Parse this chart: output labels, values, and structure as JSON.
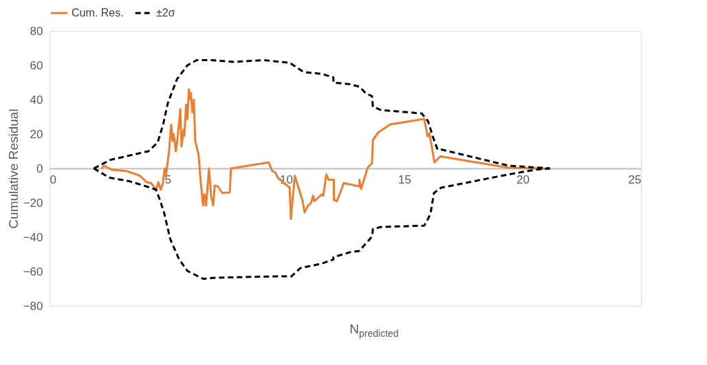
{
  "chart_data": {
    "type": "line",
    "xlabel": "N$_{predicted}$",
    "ylabel": "Cumulative Residual",
    "xlim": [
      0,
      25
    ],
    "xticks": [
      0,
      5,
      10,
      15,
      20,
      25
    ],
    "ylim": [
      -80,
      80
    ],
    "yticks": [
      -80,
      -60,
      -40,
      -20,
      0,
      20,
      40,
      60,
      80
    ],
    "grid": false,
    "legend": "top",
    "marker": "none",
    "series": [
      {
        "name": "Cum. Res.",
        "color": "#ed7d31",
        "line_style": "solid",
        "x": [
          2.2,
          2.3,
          2.64,
          3.27,
          3.82,
          4.1,
          4.29,
          4.51,
          4.6,
          4.7,
          4.79,
          4.87,
          4.92,
          5.06,
          5.14,
          5.2,
          5.25,
          5.34,
          5.42,
          5.53,
          5.58,
          5.67,
          5.7,
          5.77,
          5.83,
          5.89,
          5.93,
          5.97,
          6.04,
          6.1,
          6.16,
          6.3,
          6.38,
          6.49,
          6.55,
          6.62,
          6.74,
          6.83,
          6.92,
          6.98,
          7.12,
          7.3,
          7.62,
          7.67,
          9.27,
          9.41,
          9.54,
          9.65,
          10.15,
          10.2,
          10.37,
          10.7,
          10.78,
          10.92,
          11.06,
          11.14,
          11.2,
          11.52,
          11.57,
          11.7,
          11.8,
          12.02,
          12.02,
          12.15,
          12.44,
          13.1,
          13.1,
          13.17,
          13.45,
          13.63,
          13.67,
          13.9,
          14.4,
          15.84,
          15.98,
          16.06,
          16.27,
          16.52,
          19.4,
          20.95
        ],
        "values": [
          0,
          1.6,
          -0.8,
          -1.6,
          -4.2,
          -8,
          -8.5,
          -12.4,
          -8,
          -12.4,
          -8.6,
          0,
          -4.6,
          11,
          25.5,
          16,
          20,
          10,
          18.6,
          34.5,
          12.8,
          22.5,
          19,
          37,
          28.7,
          46,
          40.3,
          44,
          32.6,
          40,
          16,
          8,
          -6,
          -21.6,
          -15,
          -21.6,
          0,
          -16,
          -21.6,
          -10,
          -10.5,
          -14.3,
          -14,
          0,
          3.5,
          -1.5,
          -2.3,
          -5.4,
          -11.2,
          -29.4,
          -4.3,
          -19,
          -25.6,
          -21.7,
          -20,
          -15.9,
          -19,
          -15,
          -16,
          -3.5,
          -6.6,
          -6.6,
          -18.3,
          -19,
          -8.5,
          -10.5,
          -6.6,
          -12,
          0.4,
          3,
          16.6,
          21,
          25.6,
          28.8,
          18.6,
          20.5,
          3.5,
          7,
          0.4,
          0
        ]
      },
      {
        "name": "±2σ",
        "color": "#000000",
        "line_style": "dashed",
        "x": [
          1.87,
          2.58,
          4.18,
          4.57,
          4.81,
          5.0,
          5.39,
          5.83,
          6.22,
          6.85,
          7.76,
          9.05,
          10.15,
          10.75,
          11.5,
          12.0,
          12.0,
          12.7,
          13.1,
          13.35,
          13.63,
          13.67,
          14.0,
          15.73,
          16.0,
          16.2,
          16.4,
          16.56,
          19.4,
          21.15
        ],
        "values": [
          0,
          5,
          10,
          15,
          26,
          38,
          52,
          60,
          63,
          63,
          62,
          63,
          61.5,
          56,
          55,
          53,
          50,
          49,
          47.5,
          44,
          42,
          36,
          34,
          32,
          27.5,
          18.6,
          11,
          11,
          1.6,
          0
        ]
      },
      {
        "color": "#000000",
        "line_style": "dashed",
        "x": [
          1.87,
          2.53,
          3.36,
          4.1,
          4.5,
          4.65,
          4.84,
          5.1,
          5.47,
          5.83,
          6.5,
          7.04,
          9.6,
          10.23,
          10.6,
          11.5,
          12.0,
          12.0,
          12.7,
          13.1,
          13.64,
          13.67,
          14.0,
          15.84,
          16.1,
          16.25,
          16.56,
          19.1,
          20.5,
          21.15
        ],
        "values": [
          0,
          -5.4,
          -7.4,
          -10.5,
          -12.4,
          -17.8,
          -25.6,
          -41,
          -52.7,
          -59.7,
          -64.3,
          -63.6,
          -62.8,
          -62.8,
          -58,
          -55.4,
          -53,
          -51.6,
          -48.8,
          -48,
          -39.5,
          -35.3,
          -34.1,
          -33.3,
          -26.7,
          -14.3,
          -11.2,
          -4.3,
          -0.8,
          0
        ]
      }
    ]
  }
}
